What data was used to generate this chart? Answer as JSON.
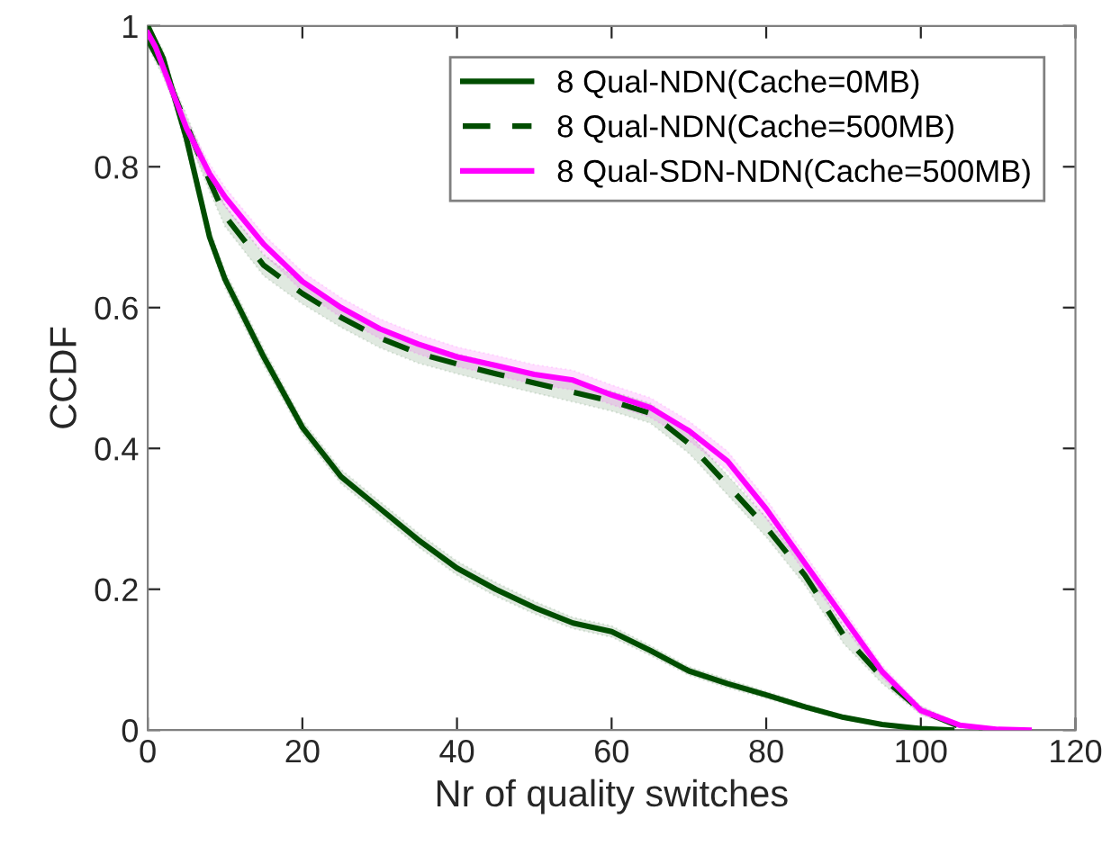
{
  "chart_data": {
    "type": "line",
    "xlabel": "Nr of quality switches",
    "ylabel": "CCDF",
    "xlim": [
      0,
      120
    ],
    "xticks": [
      0,
      20,
      40,
      60,
      80,
      100,
      120
    ],
    "ylim": [
      0,
      1
    ],
    "yticks": [
      0,
      0.2,
      0.4,
      0.6,
      0.8,
      1
    ],
    "grid": false,
    "legend": "top right",
    "series": [
      {
        "name": "8 Qual-NDN(Cache=0MB)",
        "color": "#004d00",
        "line_style": "solid",
        "x": [
          0,
          2,
          5,
          8,
          10,
          15,
          20,
          25,
          30,
          35,
          40,
          45,
          50,
          55,
          60,
          65,
          70,
          75,
          80,
          85,
          90,
          95,
          100,
          104
        ],
        "values": [
          1.0,
          0.954,
          0.84,
          0.7,
          0.64,
          0.53,
          0.43,
          0.36,
          0.315,
          0.27,
          0.23,
          0.2,
          0.174,
          0.152,
          0.14,
          0.113,
          0.084,
          0.066,
          0.05,
          0.033,
          0.018,
          0.008,
          0.002,
          0.0
        ],
        "lower": [
          0.99,
          0.94,
          0.825,
          0.69,
          0.628,
          0.518,
          0.42,
          0.35,
          0.305,
          0.26,
          0.22,
          0.19,
          0.165,
          0.144,
          0.132,
          0.106,
          0.078,
          0.06,
          0.045,
          0.029,
          0.015,
          0.006,
          0.001,
          0.0
        ],
        "upper": [
          1.0,
          0.966,
          0.854,
          0.712,
          0.652,
          0.542,
          0.44,
          0.37,
          0.325,
          0.28,
          0.24,
          0.21,
          0.183,
          0.16,
          0.148,
          0.12,
          0.09,
          0.072,
          0.055,
          0.037,
          0.021,
          0.01,
          0.003,
          0.0
        ]
      },
      {
        "name": "8 Qual-NDN(Cache=500MB)",
        "color": "#004d00",
        "line_style": "dashed",
        "x": [
          0,
          2,
          5,
          8,
          10,
          15,
          20,
          25,
          30,
          35,
          40,
          45,
          50,
          55,
          60,
          65,
          70,
          75,
          80,
          85,
          90,
          95,
          100,
          105,
          108
        ],
        "values": [
          0.98,
          0.94,
          0.86,
          0.78,
          0.73,
          0.66,
          0.62,
          0.586,
          0.557,
          0.535,
          0.52,
          0.506,
          0.493,
          0.48,
          0.467,
          0.45,
          0.407,
          0.348,
          0.288,
          0.22,
          0.135,
          0.075,
          0.028,
          0.005,
          0.0
        ],
        "lower": [
          0.97,
          0.928,
          0.846,
          0.765,
          0.715,
          0.645,
          0.605,
          0.572,
          0.543,
          0.521,
          0.506,
          0.492,
          0.479,
          0.466,
          0.453,
          0.436,
          0.393,
          0.334,
          0.274,
          0.206,
          0.123,
          0.066,
          0.022,
          0.003,
          0.0
        ],
        "upper": [
          0.99,
          0.952,
          0.874,
          0.795,
          0.745,
          0.675,
          0.635,
          0.6,
          0.571,
          0.549,
          0.534,
          0.52,
          0.507,
          0.494,
          0.481,
          0.464,
          0.421,
          0.362,
          0.302,
          0.234,
          0.148,
          0.085,
          0.034,
          0.008,
          0.0
        ]
      },
      {
        "name": "8 Qual-SDN-NDN(Cache=500MB)",
        "color": "#ff00ff",
        "line_style": "solid",
        "x": [
          0,
          1,
          5,
          8,
          10,
          12,
          15,
          20,
          25,
          30,
          35,
          40,
          45,
          50,
          55,
          60,
          65,
          70,
          75,
          80,
          85,
          90,
          95,
          100,
          105,
          110,
          114
        ],
        "values": [
          0.99,
          0.97,
          0.855,
          0.79,
          0.757,
          0.73,
          0.69,
          0.637,
          0.6,
          0.57,
          0.548,
          0.53,
          0.518,
          0.505,
          0.497,
          0.476,
          0.458,
          0.425,
          0.382,
          0.314,
          0.237,
          0.16,
          0.083,
          0.028,
          0.007,
          0.001,
          0.0
        ],
        "lower": [
          0.98,
          0.958,
          0.842,
          0.776,
          0.743,
          0.716,
          0.676,
          0.623,
          0.586,
          0.556,
          0.534,
          0.516,
          0.504,
          0.491,
          0.483,
          0.462,
          0.444,
          0.411,
          0.368,
          0.3,
          0.224,
          0.148,
          0.074,
          0.022,
          0.004,
          0.0,
          0.0
        ],
        "upper": [
          1.0,
          0.982,
          0.868,
          0.804,
          0.771,
          0.744,
          0.704,
          0.651,
          0.614,
          0.584,
          0.562,
          0.544,
          0.532,
          0.519,
          0.511,
          0.49,
          0.472,
          0.439,
          0.396,
          0.328,
          0.25,
          0.172,
          0.092,
          0.034,
          0.01,
          0.002,
          0.0
        ]
      }
    ]
  }
}
